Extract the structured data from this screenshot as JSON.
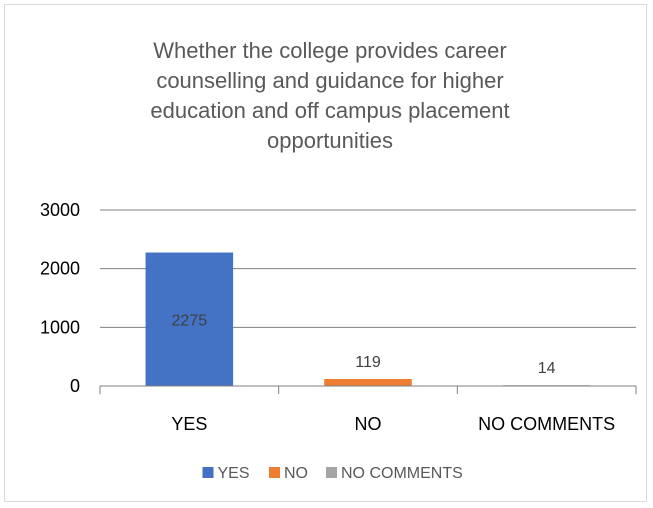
{
  "chart_data": {
    "type": "bar",
    "title": "Whether the college provides career counselling and guidance for higher education and off campus placement opportunities",
    "categories": [
      "YES",
      "NO",
      "NO COMMENTS"
    ],
    "values": [
      2275,
      119,
      14
    ],
    "data_labels": [
      "2275",
      "119",
      "14"
    ],
    "colors": [
      "#4472c4",
      "#ed7d31",
      "#a5a5a5"
    ],
    "ylim": [
      0,
      3000
    ],
    "yticks": [
      "0",
      "1000",
      "2000",
      "3000"
    ],
    "grid": true,
    "legend": {
      "position": "bottom",
      "entries": [
        "YES",
        "NO",
        "NO COMMENTS"
      ]
    }
  }
}
